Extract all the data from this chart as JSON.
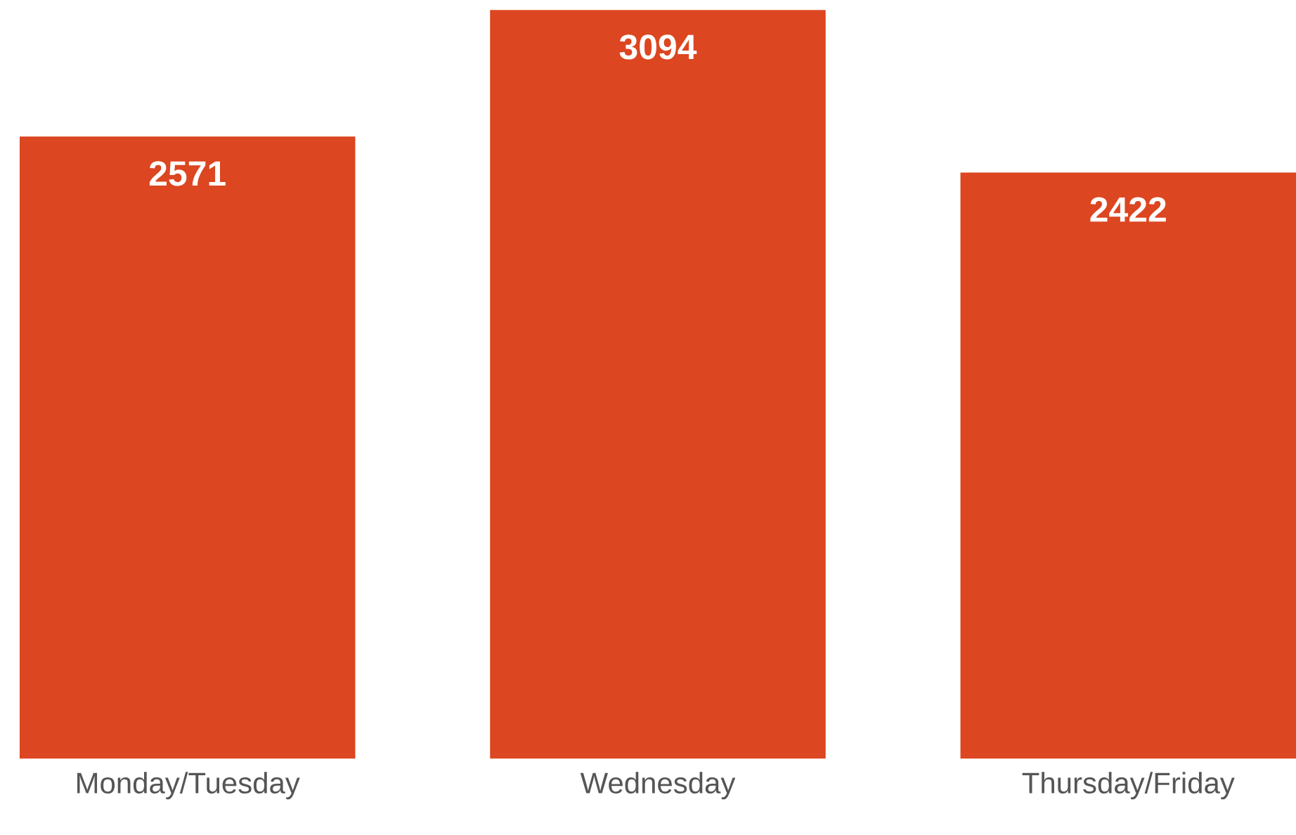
{
  "chart_data": {
    "type": "bar",
    "categories": [
      "Monday/Tuesday",
      "Wednesday",
      "Thursday/Friday"
    ],
    "values": [
      2571,
      3094,
      2422
    ],
    "color": "#dc4620",
    "data_labels": true
  }
}
